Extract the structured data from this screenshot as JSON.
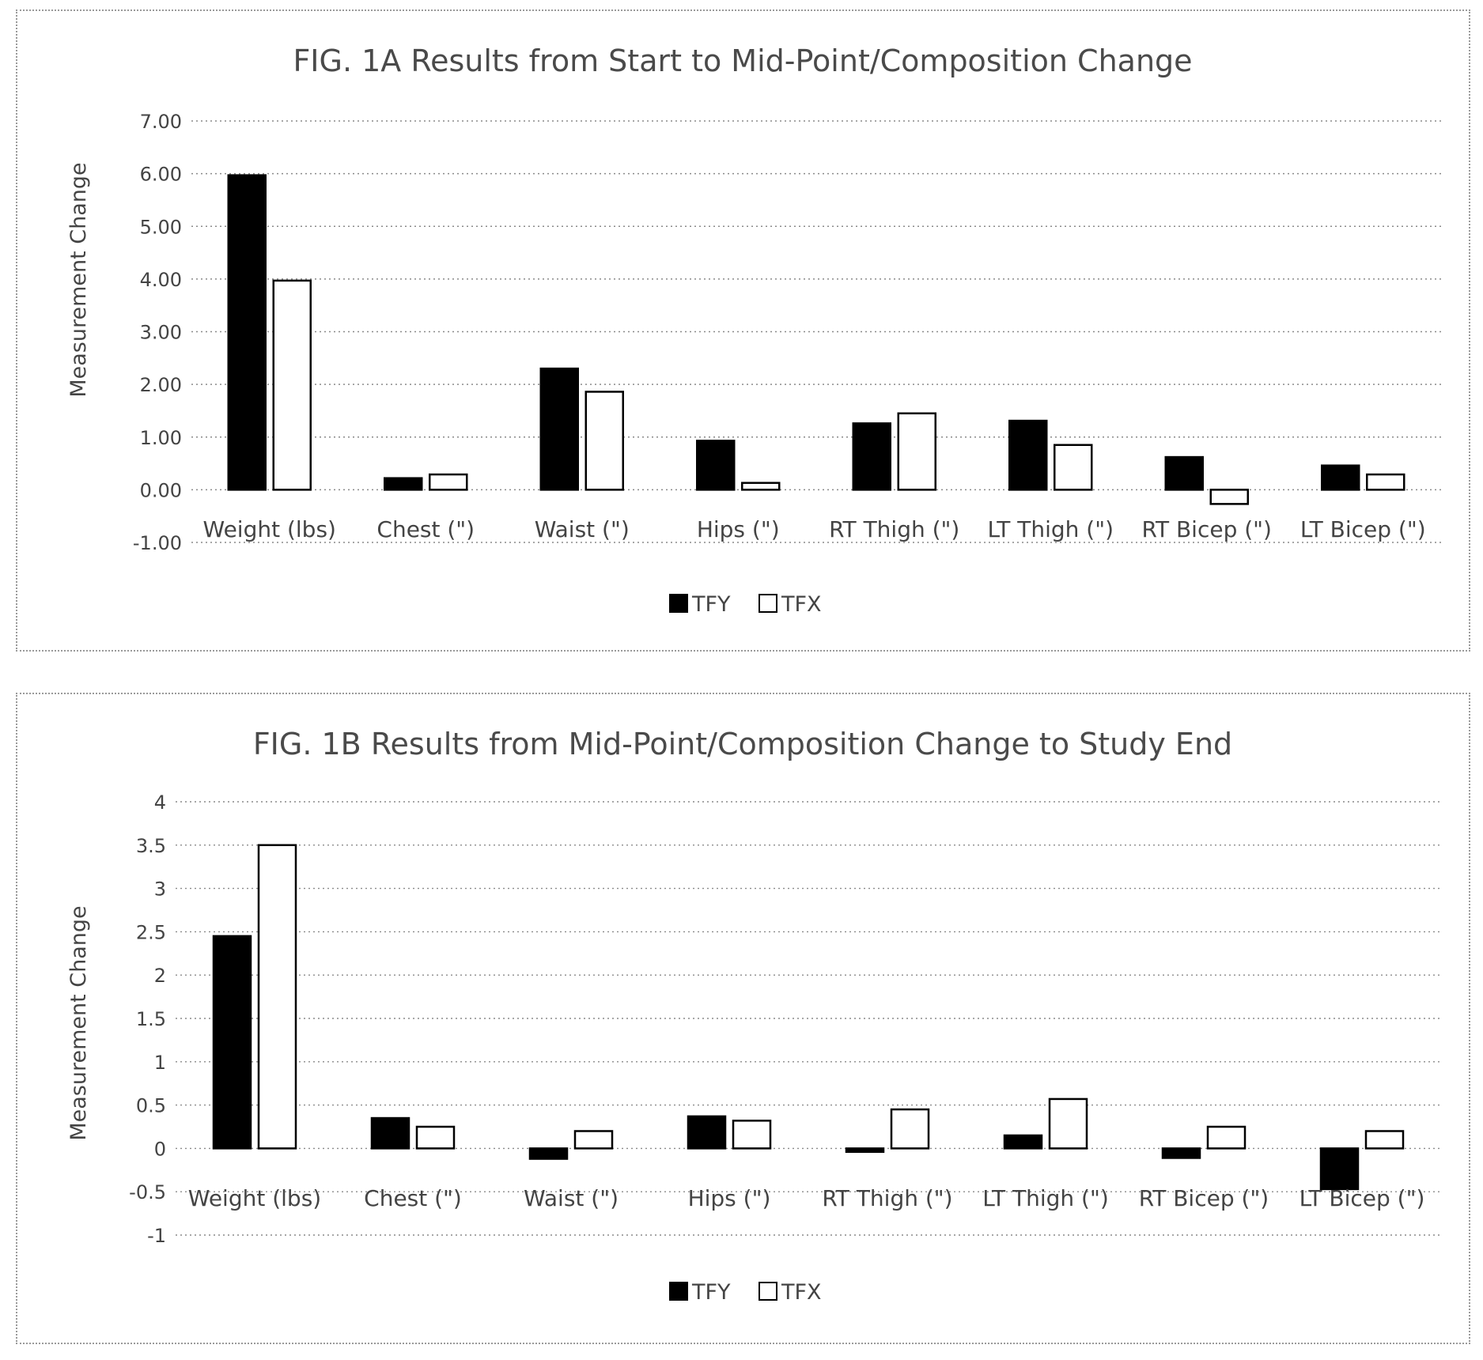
{
  "colors": {
    "tfy": "#000000",
    "tfx": "#ffffff",
    "bar_stroke": "#000000"
  },
  "chart_data": [
    {
      "type": "bar",
      "title": "FIG. 1A Results from Start to Mid-Point/Composition Change",
      "ylabel": "Measurement Change",
      "xlabel": "",
      "categories": [
        "Weight (lbs)",
        "Chest (\")",
        "Waist (\")",
        "Hips (\")",
        "RT Thigh (\")",
        "LT Thigh (\")",
        "RT Bicep (\")",
        "LT Bicep (\")"
      ],
      "series": [
        {
          "name": "TFY",
          "values": [
            5.97,
            0.22,
            2.3,
            0.93,
            1.26,
            1.31,
            0.62,
            0.46
          ]
        },
        {
          "name": "TFX",
          "values": [
            3.97,
            0.29,
            1.86,
            0.13,
            1.45,
            0.85,
            -0.27,
            0.29
          ]
        }
      ],
      "ylim": [
        -1,
        7
      ],
      "yticks": [
        "-1.00",
        "0.00",
        "1.00",
        "2.00",
        "3.00",
        "4.00",
        "5.00",
        "6.00",
        "7.00"
      ],
      "grid": true,
      "legend": "bottom-center"
    },
    {
      "type": "bar",
      "title": "FIG. 1B Results from Mid-Point/Composition Change to Study End",
      "ylabel": "Measurement Change",
      "xlabel": "",
      "categories": [
        "Weight (lbs)",
        "Chest (\")",
        "Waist (\")",
        "Hips (\")",
        "RT Thigh (\")",
        "LT Thigh (\")",
        "RT Bicep (\")",
        "LT Bicep (\")"
      ],
      "series": [
        {
          "name": "TFY",
          "values": [
            2.45,
            0.35,
            -0.12,
            0.37,
            -0.04,
            0.15,
            -0.11,
            -0.47
          ]
        },
        {
          "name": "TFX",
          "values": [
            3.5,
            0.25,
            0.2,
            0.32,
            0.45,
            0.57,
            0.25,
            0.2
          ]
        }
      ],
      "ylim": [
        -1,
        4
      ],
      "yticks": [
        "-1",
        "-0.5",
        "0",
        "0.5",
        "1",
        "1.5",
        "2",
        "2.5",
        "3",
        "3.5",
        "4"
      ],
      "grid": true,
      "legend": "bottom-center"
    }
  ]
}
